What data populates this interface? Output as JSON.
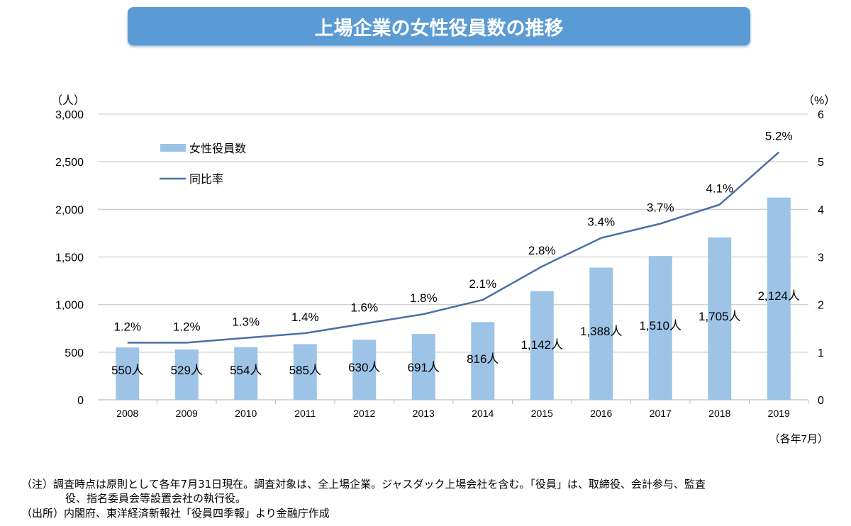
{
  "title": "上場企業の女性役員数の推移",
  "chart_data": {
    "type": "bar+line",
    "categories": [
      "2008",
      "2009",
      "2010",
      "2011",
      "2012",
      "2013",
      "2014",
      "2015",
      "2016",
      "2017",
      "2018",
      "2019"
    ],
    "series": [
      {
        "name": "女性役員数",
        "type": "bar",
        "axis": "left",
        "color": "#9dc3e6",
        "values": [
          550,
          529,
          554,
          585,
          630,
          691,
          816,
          1142,
          1388,
          1510,
          1705,
          2124
        ],
        "labels": [
          "550人",
          "529人",
          "554人",
          "585人",
          "630人",
          "691人",
          "816人",
          "1,142人",
          "1,388人",
          "1,510人",
          "1,705人",
          "2,124人"
        ]
      },
      {
        "name": "同比率",
        "type": "line",
        "axis": "right",
        "color": "#4a6fa5",
        "values": [
          1.2,
          1.2,
          1.3,
          1.4,
          1.6,
          1.8,
          2.1,
          2.8,
          3.4,
          3.7,
          4.1,
          5.2
        ],
        "labels": [
          "1.2%",
          "1.2%",
          "1.3%",
          "1.4%",
          "1.6%",
          "1.8%",
          "2.1%",
          "2.8%",
          "3.4%",
          "3.7%",
          "4.1%",
          "5.2%"
        ]
      }
    ],
    "left_axis": {
      "unit": "（人）",
      "ylim": [
        0,
        3000
      ],
      "ticks": [
        "0",
        "500",
        "1,000",
        "1,500",
        "2,000",
        "2,500",
        "3,000"
      ]
    },
    "right_axis": {
      "unit": "（%）",
      "ylim": [
        0,
        6
      ],
      "ticks": [
        "0",
        "1",
        "2",
        "3",
        "4",
        "5",
        "6"
      ]
    },
    "xlabel": "（各年7月）",
    "grid": true,
    "legend": "top-left"
  },
  "notes": [
    "（注）調査時点は原則として各年7月31日現在。調査対象は、全上場企業。ジャスダック上場会社を含む。「役員」は、取締役、会計参与、監査",
    "役、指名委員会等設置会社の執行役。",
    "（出所）内閣府、東洋経済新報社「役員四季報」より金融庁作成"
  ]
}
